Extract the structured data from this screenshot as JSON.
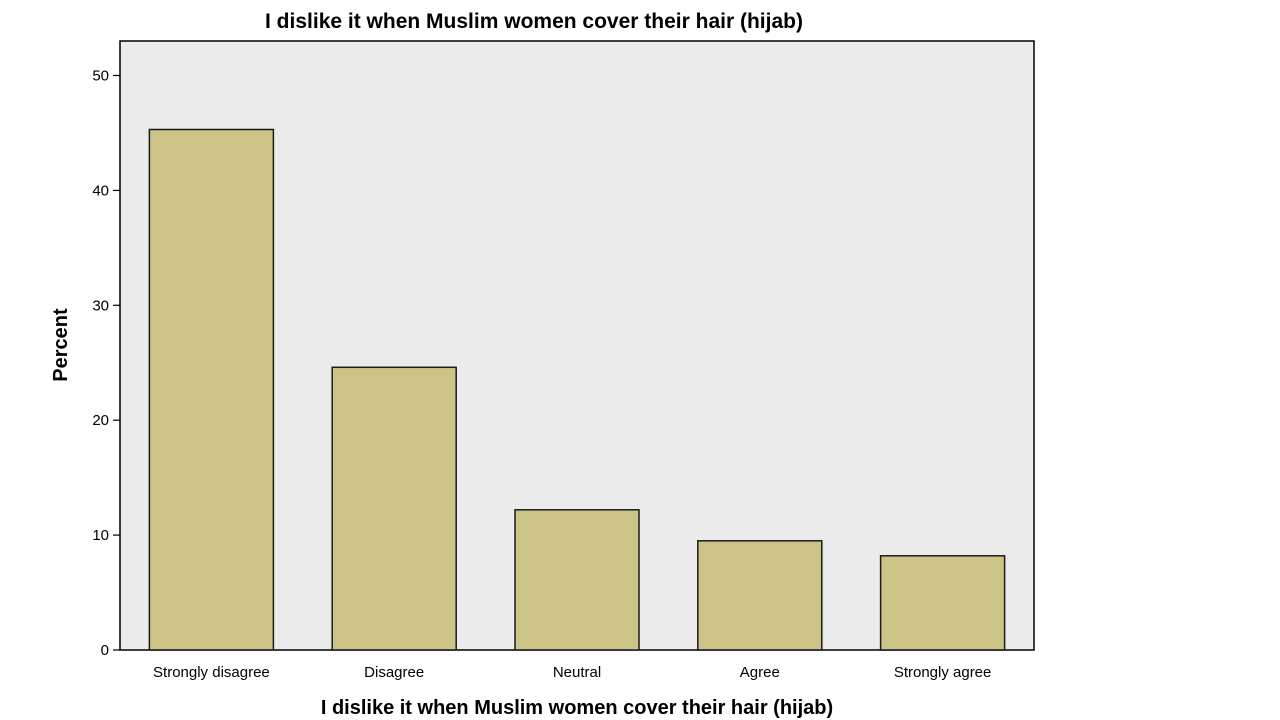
{
  "chart_data": {
    "type": "bar",
    "title": "I dislike it when Muslim women cover their hair (hijab)",
    "xlabel": "I dislike it when Muslim women cover their hair (hijab)",
    "ylabel": "Percent",
    "categories": [
      "Strongly disagree",
      "Disagree",
      "Neutral",
      "Agree",
      "Strongly agree"
    ],
    "values": [
      45.3,
      24.6,
      12.2,
      9.5,
      8.2
    ],
    "ylim": [
      0,
      53
    ],
    "yticks": [
      "0",
      "10",
      "20",
      "30",
      "40",
      "50"
    ],
    "grid": false,
    "legend": "none",
    "colors": {
      "bar_fill": "#ccc487",
      "bar_stroke": "#1a1a1a",
      "plot_background": "#ebebeb",
      "axis": "#000000"
    }
  }
}
